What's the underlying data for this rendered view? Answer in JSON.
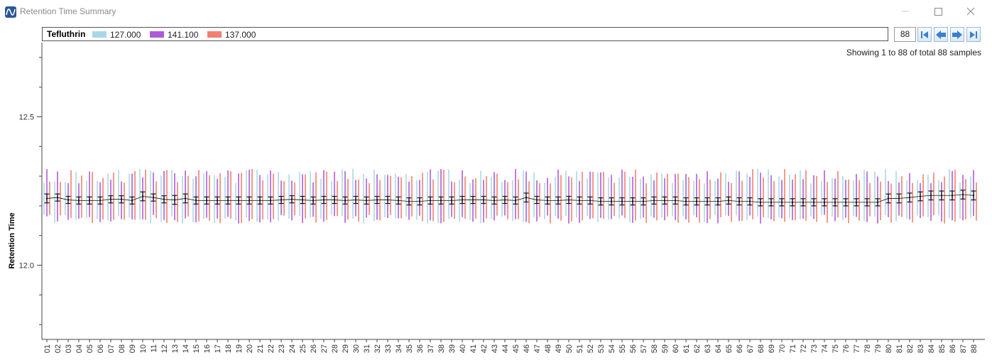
{
  "window": {
    "title": "Retention Time Summary"
  },
  "legend": {
    "compound": "Tefluthrin",
    "items": [
      {
        "label": "127.000",
        "color": "#a8d8e8"
      },
      {
        "label": "141.100",
        "color": "#b05ad8"
      },
      {
        "label": "137.000",
        "color": "#f08070"
      }
    ]
  },
  "nav": {
    "count": "88",
    "showing": "Showing 1 to 88 of total 88 samples"
  },
  "chart_data": {
    "type": "errorbar",
    "ylabel": "Retention Time",
    "ylim": [
      11.75,
      12.75
    ],
    "yticks": [
      12.0,
      12.5
    ],
    "ytick_labels": [
      "12.0",
      "12.5"
    ],
    "categories": [
      "01",
      "02",
      "03",
      "04",
      "05",
      "06",
      "07",
      "08",
      "09",
      "10",
      "11",
      "12",
      "13",
      "14",
      "15",
      "16",
      "17",
      "18",
      "19",
      "20",
      "21",
      "22",
      "23",
      "24",
      "25",
      "26",
      "27",
      "28",
      "29",
      "30",
      "31",
      "32",
      "33",
      "34",
      "35",
      "36",
      "37",
      "38",
      "39",
      "40",
      "41",
      "42",
      "43",
      "44",
      "45",
      "46",
      "47",
      "48",
      "49",
      "50",
      "51",
      "52",
      "53",
      "54",
      "55",
      "56",
      "57",
      "58",
      "59",
      "60",
      "61",
      "62",
      "63",
      "64",
      "65",
      "66",
      "67",
      "68",
      "69",
      "70",
      "71",
      "72",
      "73",
      "74",
      "75",
      "76",
      "77",
      "78",
      "79",
      "80",
      "81",
      "82",
      "83",
      "84",
      "85",
      "86",
      "87",
      "88"
    ],
    "mean": [
      12.225,
      12.228,
      12.22,
      12.218,
      12.218,
      12.218,
      12.222,
      12.222,
      12.218,
      12.232,
      12.228,
      12.222,
      12.22,
      12.225,
      12.218,
      12.218,
      12.218,
      12.218,
      12.218,
      12.218,
      12.218,
      12.218,
      12.22,
      12.222,
      12.22,
      12.218,
      12.22,
      12.22,
      12.218,
      12.22,
      12.218,
      12.22,
      12.22,
      12.218,
      12.215,
      12.215,
      12.218,
      12.218,
      12.218,
      12.22,
      12.22,
      12.22,
      12.218,
      12.22,
      12.218,
      12.228,
      12.22,
      12.218,
      12.218,
      12.22,
      12.218,
      12.218,
      12.215,
      12.215,
      12.215,
      12.215,
      12.215,
      12.218,
      12.218,
      12.218,
      12.215,
      12.215,
      12.215,
      12.215,
      12.218,
      12.215,
      12.215,
      12.212,
      12.212,
      12.212,
      12.212,
      12.212,
      12.212,
      12.212,
      12.212,
      12.212,
      12.212,
      12.212,
      12.212,
      12.225,
      12.225,
      12.228,
      12.232,
      12.235,
      12.235,
      12.235,
      12.238,
      12.235
    ],
    "err": [
      0.015,
      0.012,
      0.012,
      0.012,
      0.012,
      0.012,
      0.012,
      0.012,
      0.012,
      0.015,
      0.012,
      0.012,
      0.015,
      0.015,
      0.012,
      0.012,
      0.012,
      0.012,
      0.012,
      0.012,
      0.012,
      0.012,
      0.012,
      0.012,
      0.012,
      0.012,
      0.012,
      0.012,
      0.012,
      0.012,
      0.012,
      0.012,
      0.012,
      0.012,
      0.012,
      0.012,
      0.012,
      0.012,
      0.012,
      0.012,
      0.012,
      0.012,
      0.012,
      0.012,
      0.012,
      0.015,
      0.012,
      0.012,
      0.012,
      0.012,
      0.012,
      0.012,
      0.012,
      0.012,
      0.012,
      0.012,
      0.012,
      0.012,
      0.012,
      0.012,
      0.012,
      0.012,
      0.012,
      0.012,
      0.012,
      0.012,
      0.012,
      0.012,
      0.012,
      0.012,
      0.012,
      0.012,
      0.012,
      0.012,
      0.012,
      0.012,
      0.012,
      0.012,
      0.012,
      0.015,
      0.015,
      0.015,
      0.015,
      0.015,
      0.015,
      0.015,
      0.015,
      0.015
    ],
    "series_ranges": [
      {
        "name": "127.000",
        "color": "#a8d8e8",
        "low": 12.17,
        "high": 12.3
      },
      {
        "name": "141.100",
        "color": "#b05ad8",
        "low": 12.17,
        "high": 12.3
      },
      {
        "name": "137.000",
        "color": "#f08070",
        "low": 12.17,
        "high": 12.3
      }
    ],
    "grid": false
  }
}
